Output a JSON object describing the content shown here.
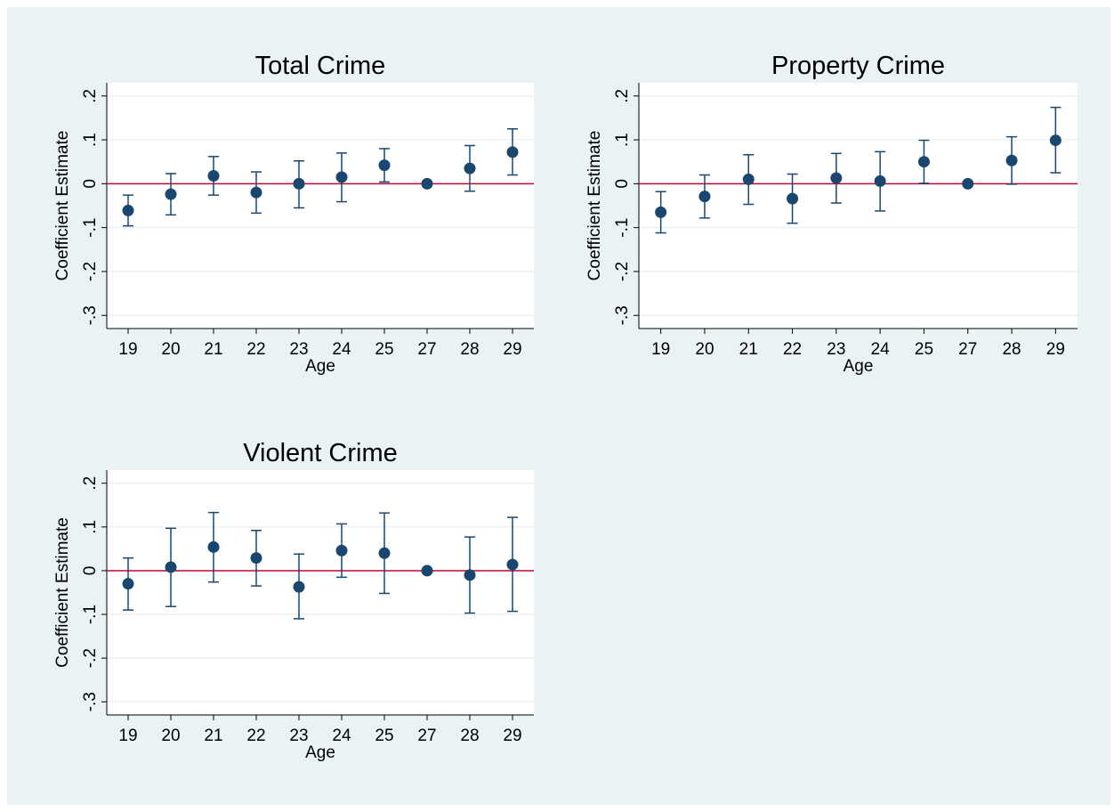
{
  "colors": {
    "background": "#eaf2f3",
    "plot_background": "#ffffff",
    "point": "#1a476f",
    "reference_line": "#c10534",
    "grid": "#eaf2f3"
  },
  "chart_data": [
    {
      "type": "scatter",
      "title": "Total Crime",
      "xlabel": "Age",
      "ylabel": "Coefficient Estimate",
      "categories": [
        "19",
        "20",
        "21",
        "22",
        "23",
        "24",
        "25",
        "27",
        "28",
        "29"
      ],
      "ylim": [
        -0.33,
        0.23
      ],
      "yticks": [
        -0.3,
        -0.2,
        -0.1,
        0,
        0.1,
        0.2
      ],
      "ytick_labels": [
        "-.3",
        "-.2",
        "-.1",
        "0",
        ".1",
        ".2"
      ],
      "reference_line": 0,
      "grid": true,
      "estimates": [
        -0.061,
        -0.024,
        0.018,
        -0.02,
        0.0,
        0.015,
        0.042,
        0.0,
        0.035,
        0.072
      ],
      "ci_low": [
        -0.096,
        -0.071,
        -0.026,
        -0.067,
        -0.055,
        -0.041,
        0.004,
        0.0,
        -0.017,
        0.02
      ],
      "ci_high": [
        -0.026,
        0.023,
        0.062,
        0.027,
        0.052,
        0.07,
        0.08,
        0.0,
        0.087,
        0.125
      ]
    },
    {
      "type": "scatter",
      "title": "Property Crime",
      "xlabel": "Age",
      "ylabel": "Coefficient Estimate",
      "categories": [
        "19",
        "20",
        "21",
        "22",
        "23",
        "24",
        "25",
        "27",
        "28",
        "29"
      ],
      "ylim": [
        -0.33,
        0.23
      ],
      "yticks": [
        -0.3,
        -0.2,
        -0.1,
        0,
        0.1,
        0.2
      ],
      "ytick_labels": [
        "-.3",
        "-.2",
        "-.1",
        "0",
        ".1",
        ".2"
      ],
      "reference_line": 0,
      "grid": true,
      "estimates": [
        -0.065,
        -0.029,
        0.01,
        -0.034,
        0.013,
        0.006,
        0.05,
        0.0,
        0.053,
        0.099
      ],
      "ci_low": [
        -0.112,
        -0.078,
        -0.047,
        -0.09,
        -0.044,
        -0.062,
        0.001,
        0.0,
        -0.001,
        0.025
      ],
      "ci_high": [
        -0.018,
        0.02,
        0.066,
        0.022,
        0.069,
        0.073,
        0.099,
        0.0,
        0.107,
        0.174
      ]
    },
    {
      "type": "scatter",
      "title": "Violent Crime",
      "xlabel": "Age",
      "ylabel": "Coefficient Estimate",
      "categories": [
        "19",
        "20",
        "21",
        "22",
        "23",
        "24",
        "25",
        "27",
        "28",
        "29"
      ],
      "ylim": [
        -0.33,
        0.23
      ],
      "yticks": [
        -0.3,
        -0.2,
        -0.1,
        0,
        0.1,
        0.2
      ],
      "ytick_labels": [
        "-.3",
        "-.2",
        "-.1",
        "0",
        ".1",
        ".2"
      ],
      "reference_line": 0,
      "grid": true,
      "estimates": [
        -0.03,
        0.008,
        0.054,
        0.029,
        -0.037,
        0.046,
        0.04,
        0.0,
        -0.01,
        0.014
      ],
      "ci_low": [
        -0.09,
        -0.082,
        -0.026,
        -0.035,
        -0.11,
        -0.015,
        -0.052,
        0.0,
        -0.097,
        -0.093
      ],
      "ci_high": [
        0.029,
        0.097,
        0.133,
        0.092,
        0.038,
        0.107,
        0.132,
        0.0,
        0.077,
        0.122
      ]
    }
  ]
}
